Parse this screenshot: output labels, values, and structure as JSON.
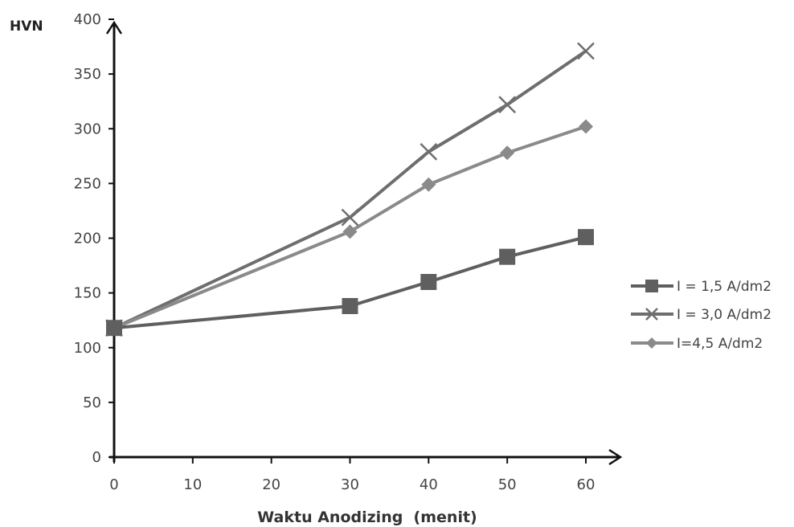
{
  "chart_data": {
    "type": "line",
    "title": "",
    "ylabel": "HVN",
    "xlabel": "Waktu Anodizing  (menit)",
    "x_ticks": [
      "0",
      "10",
      "20",
      "30",
      "40",
      "50",
      "60"
    ],
    "y_ticks": [
      "0",
      "50",
      "100",
      "150",
      "200",
      "250",
      "300",
      "350",
      "400"
    ],
    "xlim": [
      0,
      60
    ],
    "ylim": [
      0,
      400
    ],
    "grid": false,
    "legend_position": "right",
    "x": [
      0,
      30,
      40,
      50,
      60
    ],
    "series": [
      {
        "name": "I = 1,5 A/dm2",
        "values": [
          118,
          138,
          160,
          183,
          201
        ],
        "marker": "square",
        "color": "#5f5f5f"
      },
      {
        "name": "I = 3,0 A/dm2",
        "values": [
          118,
          219,
          279,
          322,
          371
        ],
        "marker": "x",
        "color": "#6e6e6e"
      },
      {
        "name": "I=4,5 A/dm2",
        "values": [
          118,
          206,
          249,
          278,
          302
        ],
        "marker": "diamond",
        "color": "#8a8a8a"
      }
    ]
  }
}
